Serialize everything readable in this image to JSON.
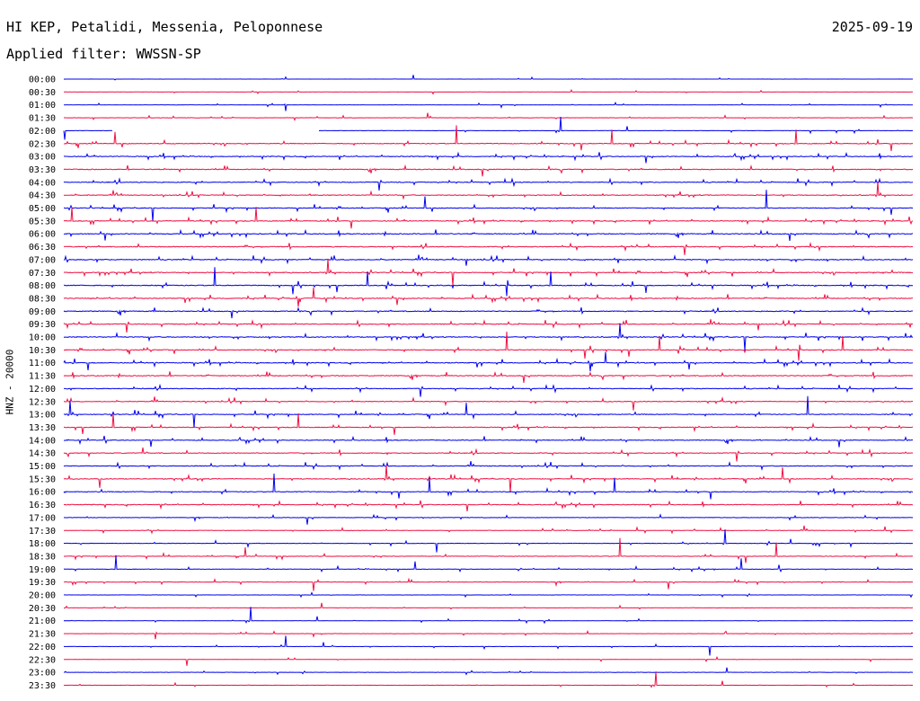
{
  "header": {
    "station": "HI KEP, Petalidi, Messenia, Peloponnese",
    "date": "2025-09-19",
    "filter": "Applied filter: WWSSN-SP"
  },
  "chart_data": {
    "type": "line",
    "ylabel": "HNZ - 20000",
    "row_labels": [
      "00:00",
      "00:30",
      "01:00",
      "01:30",
      "02:00",
      "02:30",
      "03:00",
      "03:30",
      "04:00",
      "04:30",
      "05:00",
      "05:30",
      "06:00",
      "06:30",
      "07:00",
      "07:30",
      "08:00",
      "08:30",
      "09:00",
      "09:30",
      "10:00",
      "10:30",
      "11:00",
      "11:30",
      "12:00",
      "12:30",
      "13:00",
      "13:30",
      "14:00",
      "14:30",
      "15:00",
      "15:30",
      "16:00",
      "16:30",
      "17:00",
      "17:30",
      "18:00",
      "18:30",
      "19:00",
      "19:30",
      "20:00",
      "20:30",
      "21:00",
      "21:30",
      "22:00",
      "22:30",
      "23:00",
      "23:30"
    ],
    "series_colors": [
      "#0000ee",
      "#ee1144"
    ],
    "grid": false
  }
}
